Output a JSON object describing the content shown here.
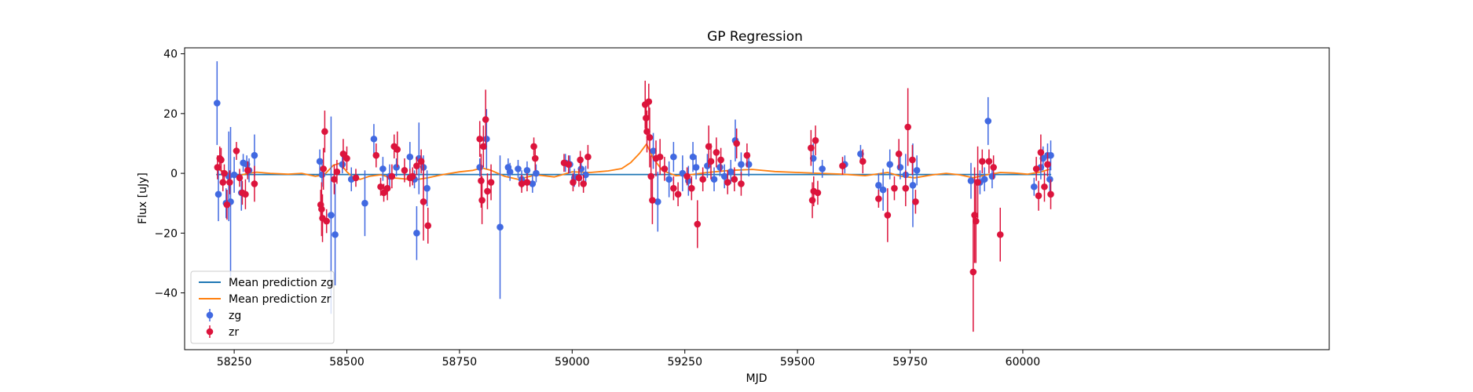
{
  "chart_data": {
    "type": "scatter",
    "title": "GP Regression",
    "xlabel": "MJD",
    "ylabel": "Flux [uJy]",
    "xlim": [
      58140,
      60680
    ],
    "ylim": [
      -59,
      42
    ],
    "xticks": [
      58250,
      58500,
      58750,
      59000,
      59250,
      59500,
      59750,
      60000
    ],
    "yticks": [
      -40,
      -20,
      0,
      20,
      40
    ],
    "legend_position": "lower-left",
    "colors": {
      "zg_line": "#1f77b4",
      "zr_line": "#ff7f0e",
      "zg_points": "#4169e1",
      "zr_points": "#dc143c"
    },
    "series": [
      {
        "name": "Mean prediction zg",
        "kind": "line",
        "x": [
          58210,
          58400,
          58600,
          58800,
          59000,
          59200,
          59400,
          59600,
          59800,
          60000,
          60063
        ],
        "y": [
          -0.4,
          -0.4,
          -0.4,
          -0.4,
          -0.4,
          -0.4,
          -0.4,
          -0.4,
          -0.4,
          -0.4,
          -0.4
        ]
      },
      {
        "name": "Mean prediction zr",
        "kind": "line",
        "x": [
          58210,
          58230,
          58255,
          58280,
          58300,
          58330,
          58370,
          58400,
          58430,
          58450,
          58470,
          58485,
          58500,
          58515,
          58530,
          58550,
          58575,
          58600,
          58625,
          58650,
          58680,
          58710,
          58750,
          58780,
          58800,
          58820,
          58850,
          58880,
          58920,
          58960,
          59000,
          59040,
          59080,
          59110,
          59130,
          59150,
          59165,
          59180,
          59200,
          59230,
          59260,
          59300,
          59350,
          59400,
          59450,
          59500,
          59550,
          59600,
          59650,
          59700,
          59730,
          59760,
          59800,
          59830,
          59860,
          59890,
          59920,
          59950,
          59980,
          60010,
          60040,
          60063
        ],
        "y": [
          1.5,
          0.5,
          -1.0,
          0.0,
          0.4,
          0.0,
          -0.3,
          0.0,
          -1.0,
          -0.5,
          2.7,
          3.4,
          0.5,
          -1.5,
          -2.0,
          -1.0,
          -0.5,
          -1.5,
          -1.8,
          -2.2,
          -1.5,
          -0.5,
          0.5,
          1.0,
          1.8,
          1.0,
          -1.0,
          -2.0,
          -0.5,
          -1.2,
          0.5,
          0.3,
          0.8,
          1.6,
          3.6,
          6.8,
          9.8,
          5.0,
          1.0,
          -0.8,
          -0.5,
          0.3,
          1.0,
          1.3,
          0.6,
          0.3,
          0.0,
          -0.3,
          -0.8,
          0.3,
          -1.0,
          -1.5,
          -0.5,
          0.0,
          -0.5,
          -1.5,
          -0.5,
          0.3,
          0.1,
          -0.3,
          0.5,
          1.5
        ]
      },
      {
        "name": "zg",
        "kind": "errorbar",
        "points": [
          [
            58212,
            23.5,
            14
          ],
          [
            58215,
            -7,
            9
          ],
          [
            58232,
            -10,
            5
          ],
          [
            58238,
            -1,
            15
          ],
          [
            58242,
            -9.5,
            25
          ],
          [
            58250,
            -0.5,
            6
          ],
          [
            58266,
            -6.5,
            6
          ],
          [
            58270,
            3.5,
            3
          ],
          [
            58278,
            3,
            3
          ],
          [
            58283,
            1,
            4
          ],
          [
            58295,
            6,
            7
          ],
          [
            58440,
            4,
            4
          ],
          [
            58445,
            -0.5,
            4
          ],
          [
            58465,
            -14,
            33
          ],
          [
            58474,
            -20.5,
            17
          ],
          [
            58490,
            3,
            3
          ],
          [
            58510,
            -2,
            4
          ],
          [
            58540,
            -10,
            11
          ],
          [
            58560,
            11.5,
            5
          ],
          [
            58580,
            1.5,
            4
          ],
          [
            58595,
            -1,
            4
          ],
          [
            58610,
            2,
            3
          ],
          [
            58640,
            5.5,
            5
          ],
          [
            58650,
            -2,
            3
          ],
          [
            58655,
            -20,
            9
          ],
          [
            58660,
            5,
            12
          ],
          [
            58670,
            2,
            4
          ],
          [
            58678,
            -5,
            6
          ],
          [
            58795,
            2,
            3
          ],
          [
            58810,
            11.5,
            10
          ],
          [
            58840,
            -18,
            24
          ],
          [
            58858,
            2,
            3
          ],
          [
            58862,
            0.5,
            3
          ],
          [
            58880,
            1.5,
            3
          ],
          [
            58888,
            -2,
            3
          ],
          [
            58900,
            1,
            3
          ],
          [
            58912,
            -3.5,
            3
          ],
          [
            58920,
            0,
            3
          ],
          [
            58985,
            3.5,
            3
          ],
          [
            58995,
            3,
            3
          ],
          [
            59005,
            -1.5,
            3
          ],
          [
            59020,
            1.5,
            4
          ],
          [
            59030,
            -0.5,
            3
          ],
          [
            59180,
            7.5,
            6
          ],
          [
            59190,
            -9.5,
            10
          ],
          [
            59215,
            -2,
            6
          ],
          [
            59225,
            5.5,
            5
          ],
          [
            59245,
            0,
            6
          ],
          [
            59258,
            -2.5,
            5
          ],
          [
            59268,
            5.5,
            5
          ],
          [
            59275,
            2,
            4
          ],
          [
            59300,
            2.5,
            4
          ],
          [
            59315,
            -2,
            4
          ],
          [
            59328,
            2,
            3
          ],
          [
            59338,
            -1,
            4
          ],
          [
            59352,
            0.5,
            4
          ],
          [
            59362,
            11,
            7
          ],
          [
            59375,
            3,
            4
          ],
          [
            59392,
            3,
            4
          ],
          [
            59535,
            5,
            5
          ],
          [
            59555,
            1.5,
            3
          ],
          [
            59605,
            3,
            3
          ],
          [
            59640,
            6.5,
            3
          ],
          [
            59680,
            -4,
            4
          ],
          [
            59690,
            -5.5,
            7
          ],
          [
            59705,
            3,
            5
          ],
          [
            59728,
            2,
            4
          ],
          [
            59740,
            -0.5,
            7
          ],
          [
            59756,
            -4,
            14
          ],
          [
            59765,
            1,
            5
          ],
          [
            59885,
            -2.5,
            6
          ],
          [
            59905,
            -3,
            4
          ],
          [
            59915,
            -2,
            4
          ],
          [
            59923,
            17.5,
            8
          ],
          [
            59932,
            -1,
            4
          ],
          [
            60025,
            -4.5,
            3
          ],
          [
            60040,
            2,
            4
          ],
          [
            60045,
            5,
            4
          ],
          [
            60055,
            6,
            4
          ],
          [
            60060,
            -2,
            6
          ],
          [
            60062,
            6,
            5
          ]
        ]
      },
      {
        "name": "zr",
        "kind": "errorbar",
        "points": [
          [
            58213,
            2,
            4
          ],
          [
            58218,
            5,
            4
          ],
          [
            58221,
            4.5,
            4
          ],
          [
            58225,
            -3,
            3
          ],
          [
            58228,
            0,
            3
          ],
          [
            58234,
            -10.5,
            5
          ],
          [
            58240,
            -3,
            4
          ],
          [
            58255,
            7.5,
            3
          ],
          [
            58262,
            -1.5,
            3
          ],
          [
            58268,
            -6.5,
            4
          ],
          [
            58275,
            -7,
            5
          ],
          [
            58280,
            1,
            3
          ],
          [
            58295,
            -3.5,
            6
          ],
          [
            58442,
            -10.5,
            5
          ],
          [
            58444,
            -12,
            9
          ],
          [
            58446,
            -15,
            8
          ],
          [
            58448,
            1.5,
            7
          ],
          [
            58451,
            14,
            7
          ],
          [
            58455,
            -16,
            4
          ],
          [
            58472,
            -2,
            5
          ],
          [
            58478,
            0.5,
            4
          ],
          [
            58492,
            6.5,
            5
          ],
          [
            58500,
            5,
            4
          ],
          [
            58520,
            -1.5,
            3
          ],
          [
            58565,
            6,
            4
          ],
          [
            58575,
            -4.5,
            3
          ],
          [
            58582,
            -6.5,
            3
          ],
          [
            58590,
            -5,
            4
          ],
          [
            58600,
            -1,
            4
          ],
          [
            58605,
            9,
            4
          ],
          [
            58612,
            8,
            6
          ],
          [
            58628,
            1,
            4
          ],
          [
            58640,
            -1.5,
            3
          ],
          [
            58646,
            -1,
            3
          ],
          [
            58655,
            2.5,
            3
          ],
          [
            58665,
            4,
            4
          ],
          [
            58670,
            -9.5,
            13
          ],
          [
            58680,
            -17.5,
            6
          ],
          [
            58795,
            11.5,
            6
          ],
          [
            58798,
            -2.5,
            9
          ],
          [
            58800,
            -9,
            8
          ],
          [
            58803,
            9,
            7
          ],
          [
            58808,
            18,
            10
          ],
          [
            58812,
            -6,
            6
          ],
          [
            58820,
            -3,
            6
          ],
          [
            58888,
            -3.5,
            3
          ],
          [
            58900,
            -3,
            3
          ],
          [
            58915,
            9,
            3
          ],
          [
            58918,
            5,
            4
          ],
          [
            58982,
            3.5,
            3
          ],
          [
            58992,
            3,
            3
          ],
          [
            59002,
            -3,
            3
          ],
          [
            59015,
            -1.5,
            3
          ],
          [
            59018,
            4.5,
            3
          ],
          [
            59025,
            -3.5,
            3
          ],
          [
            59035,
            5.5,
            4
          ],
          [
            59162,
            23,
            8
          ],
          [
            59164,
            18.5,
            5
          ],
          [
            59166,
            14,
            7
          ],
          [
            59170,
            24,
            6
          ],
          [
            59172,
            12,
            10
          ],
          [
            59175,
            -1,
            7
          ],
          [
            59178,
            -9,
            8
          ],
          [
            59186,
            5,
            6
          ],
          [
            59195,
            5.5,
            6
          ],
          [
            59205,
            1.5,
            4
          ],
          [
            59225,
            -5,
            4
          ],
          [
            59235,
            -7,
            4
          ],
          [
            59255,
            -1,
            3
          ],
          [
            59265,
            -5,
            4
          ],
          [
            59278,
            -17,
            8
          ],
          [
            59290,
            -2,
            4
          ],
          [
            59303,
            9,
            7
          ],
          [
            59308,
            4,
            6
          ],
          [
            59320,
            7,
            5
          ],
          [
            59330,
            4.5,
            4
          ],
          [
            59345,
            -3,
            4
          ],
          [
            59360,
            -2,
            4
          ],
          [
            59365,
            10,
            5
          ],
          [
            59375,
            -3.5,
            4
          ],
          [
            59388,
            6,
            4
          ],
          [
            59530,
            8.5,
            6
          ],
          [
            59533,
            -9,
            6
          ],
          [
            59536,
            -6,
            5
          ],
          [
            59540,
            11,
            5
          ],
          [
            59545,
            -6.5,
            4
          ],
          [
            59600,
            2.5,
            3
          ],
          [
            59645,
            4,
            4
          ],
          [
            59680,
            -8.5,
            3
          ],
          [
            59700,
            -14,
            9
          ],
          [
            59715,
            -5,
            4
          ],
          [
            59725,
            6.5,
            5
          ],
          [
            59740,
            -5,
            6
          ],
          [
            59745,
            15.5,
            13
          ],
          [
            59755,
            4.5,
            5
          ],
          [
            59762,
            -9.5,
            4
          ],
          [
            59890,
            -33,
            20
          ],
          [
            59893,
            -14,
            16
          ],
          [
            59896,
            -16,
            14
          ],
          [
            59900,
            -3,
            12
          ],
          [
            59910,
            4,
            4
          ],
          [
            59925,
            4,
            4
          ],
          [
            59935,
            2,
            4
          ],
          [
            59950,
            -20.5,
            9
          ],
          [
            60030,
            1.5,
            4
          ],
          [
            60035,
            -7.5,
            5
          ],
          [
            60040,
            7,
            6
          ],
          [
            60048,
            -4.5,
            5
          ],
          [
            60055,
            3,
            4
          ],
          [
            60062,
            -7,
            5
          ]
        ]
      }
    ]
  }
}
